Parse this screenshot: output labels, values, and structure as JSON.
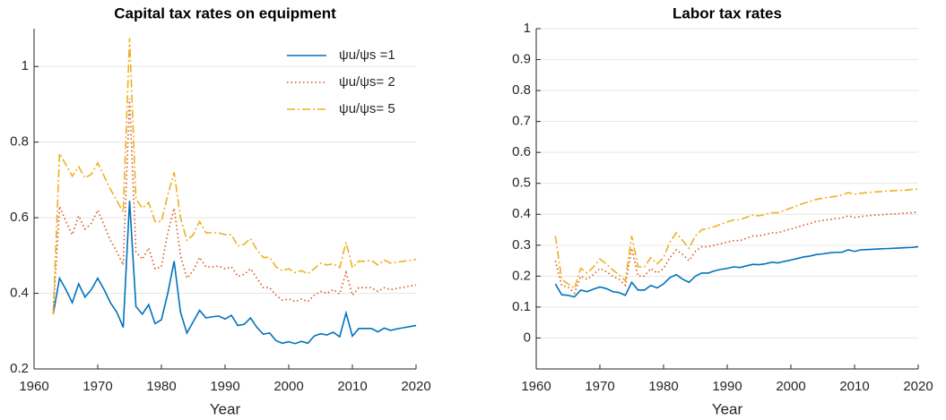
{
  "chart_data": [
    {
      "type": "line",
      "title": "Capital tax rates on equipment",
      "xlabel": "Year",
      "xlim": [
        1960,
        2020
      ],
      "xticks": [
        1960,
        1970,
        1980,
        1990,
        2000,
        2010,
        2020
      ],
      "ylim": [
        0.2,
        1.1
      ],
      "yticks": [
        0.2,
        0.4,
        0.6,
        0.8,
        1
      ],
      "grid": "y",
      "legend": "top right",
      "x": [
        1963,
        1964,
        1965,
        1966,
        1967,
        1968,
        1969,
        1970,
        1971,
        1972,
        1973,
        1974,
        1975,
        1976,
        1977,
        1978,
        1979,
        1980,
        1981,
        1982,
        1983,
        1984,
        1985,
        1986,
        1987,
        1988,
        1989,
        1990,
        1991,
        1992,
        1993,
        1994,
        1995,
        1996,
        1997,
        1998,
        1999,
        2000,
        2001,
        2002,
        2003,
        2004,
        2005,
        2006,
        2007,
        2008,
        2009,
        2010,
        2011,
        2012,
        2013,
        2014,
        2015,
        2016,
        2017,
        2018,
        2019,
        2020
      ],
      "series": [
        {
          "name": "ψu/ψs =1",
          "color": "#0072bd",
          "style": "solid",
          "values": [
            0.345,
            0.44,
            0.41,
            0.375,
            0.425,
            0.39,
            0.41,
            0.44,
            0.41,
            0.375,
            0.35,
            0.31,
            0.645,
            0.365,
            0.345,
            0.37,
            0.32,
            0.33,
            0.4,
            0.485,
            0.35,
            0.295,
            0.325,
            0.355,
            0.335,
            0.338,
            0.34,
            0.332,
            0.342,
            0.315,
            0.318,
            0.335,
            0.31,
            0.292,
            0.295,
            0.275,
            0.268,
            0.272,
            0.267,
            0.273,
            0.268,
            0.287,
            0.293,
            0.29,
            0.297,
            0.285,
            0.348,
            0.287,
            0.307,
            0.307,
            0.307,
            0.298,
            0.308,
            0.302,
            0.306,
            0.309,
            0.312,
            0.315
          ]
        },
        {
          "name": "ψu/ψs= 2",
          "color": "#d95319",
          "style": "dotted",
          "values": [
            0.345,
            0.63,
            0.59,
            0.555,
            0.605,
            0.57,
            0.585,
            0.62,
            0.58,
            0.54,
            0.51,
            0.475,
            0.915,
            0.51,
            0.49,
            0.52,
            0.465,
            0.47,
            0.56,
            0.625,
            0.5,
            0.44,
            0.46,
            0.495,
            0.47,
            0.47,
            0.472,
            0.465,
            0.47,
            0.445,
            0.45,
            0.465,
            0.44,
            0.415,
            0.415,
            0.395,
            0.382,
            0.385,
            0.378,
            0.385,
            0.378,
            0.395,
            0.405,
            0.4,
            0.41,
            0.398,
            0.455,
            0.395,
            0.415,
            0.415,
            0.415,
            0.405,
            0.415,
            0.41,
            0.413,
            0.416,
            0.419,
            0.422
          ]
        },
        {
          "name": "ψu/ψs= 5",
          "color": "#edb120",
          "style": "dashdot",
          "values": [
            0.345,
            0.77,
            0.74,
            0.71,
            0.735,
            0.705,
            0.715,
            0.745,
            0.71,
            0.675,
            0.645,
            0.615,
            1.075,
            0.65,
            0.625,
            0.64,
            0.59,
            0.59,
            0.66,
            0.72,
            0.6,
            0.54,
            0.555,
            0.59,
            0.56,
            0.56,
            0.56,
            0.555,
            0.555,
            0.525,
            0.53,
            0.545,
            0.515,
            0.495,
            0.495,
            0.47,
            0.46,
            0.465,
            0.455,
            0.46,
            0.452,
            0.465,
            0.48,
            0.475,
            0.478,
            0.468,
            0.535,
            0.468,
            0.485,
            0.485,
            0.487,
            0.475,
            0.488,
            0.48,
            0.482,
            0.485,
            0.487,
            0.49
          ]
        }
      ]
    },
    {
      "type": "line",
      "title": "Labor tax rates",
      "xlabel": "Year",
      "xlim": [
        1960,
        2020
      ],
      "xticks": [
        1960,
        1970,
        1980,
        1990,
        2000,
        2010,
        2020
      ],
      "ylim": [
        -0.1,
        1
      ],
      "yticks": [
        0,
        0.1,
        0.2,
        0.3,
        0.4,
        0.5,
        0.6,
        0.7,
        0.8,
        0.9,
        1
      ],
      "grid": "y",
      "x": [
        1963,
        1964,
        1965,
        1966,
        1967,
        1968,
        1969,
        1970,
        1971,
        1972,
        1973,
        1974,
        1975,
        1976,
        1977,
        1978,
        1979,
        1980,
        1981,
        1982,
        1983,
        1984,
        1985,
        1986,
        1987,
        1988,
        1989,
        1990,
        1991,
        1992,
        1993,
        1994,
        1995,
        1996,
        1997,
        1998,
        1999,
        2000,
        2001,
        2002,
        2003,
        2004,
        2005,
        2006,
        2007,
        2008,
        2009,
        2010,
        2011,
        2012,
        2013,
        2014,
        2015,
        2016,
        2017,
        2018,
        2019,
        2020
      ],
      "series": [
        {
          "color": "#0072bd",
          "style": "solid",
          "values": [
            0.175,
            0.14,
            0.138,
            0.133,
            0.155,
            0.15,
            0.158,
            0.165,
            0.16,
            0.15,
            0.147,
            0.138,
            0.18,
            0.155,
            0.155,
            0.17,
            0.162,
            0.175,
            0.195,
            0.205,
            0.19,
            0.18,
            0.2,
            0.21,
            0.21,
            0.217,
            0.222,
            0.225,
            0.23,
            0.228,
            0.233,
            0.238,
            0.237,
            0.24,
            0.245,
            0.243,
            0.248,
            0.252,
            0.257,
            0.262,
            0.265,
            0.27,
            0.272,
            0.275,
            0.277,
            0.277,
            0.285,
            0.28,
            0.285,
            0.286,
            0.287,
            0.288,
            0.289,
            0.29,
            0.291,
            0.292,
            0.293,
            0.295
          ]
        },
        {
          "color": "#d95319",
          "style": "dotted",
          "values": [
            0.25,
            0.17,
            0.165,
            0.145,
            0.2,
            0.19,
            0.205,
            0.225,
            0.215,
            0.2,
            0.19,
            0.17,
            0.29,
            0.2,
            0.2,
            0.225,
            0.21,
            0.225,
            0.26,
            0.285,
            0.27,
            0.25,
            0.28,
            0.295,
            0.295,
            0.3,
            0.305,
            0.31,
            0.315,
            0.315,
            0.322,
            0.33,
            0.33,
            0.335,
            0.34,
            0.34,
            0.347,
            0.352,
            0.358,
            0.365,
            0.37,
            0.377,
            0.38,
            0.383,
            0.386,
            0.388,
            0.395,
            0.39,
            0.393,
            0.395,
            0.397,
            0.398,
            0.4,
            0.401,
            0.402,
            0.404,
            0.405,
            0.407
          ]
        },
        {
          "color": "#edb120",
          "style": "dashdot",
          "values": [
            0.33,
            0.19,
            0.175,
            0.16,
            0.225,
            0.21,
            0.23,
            0.255,
            0.24,
            0.22,
            0.205,
            0.185,
            0.33,
            0.23,
            0.23,
            0.26,
            0.24,
            0.26,
            0.31,
            0.34,
            0.315,
            0.29,
            0.33,
            0.35,
            0.355,
            0.36,
            0.368,
            0.375,
            0.382,
            0.382,
            0.39,
            0.397,
            0.395,
            0.4,
            0.405,
            0.405,
            0.413,
            0.42,
            0.428,
            0.435,
            0.442,
            0.448,
            0.452,
            0.455,
            0.458,
            0.462,
            0.47,
            0.465,
            0.468,
            0.47,
            0.472,
            0.473,
            0.475,
            0.476,
            0.477,
            0.478,
            0.48,
            0.482
          ]
        }
      ]
    }
  ]
}
